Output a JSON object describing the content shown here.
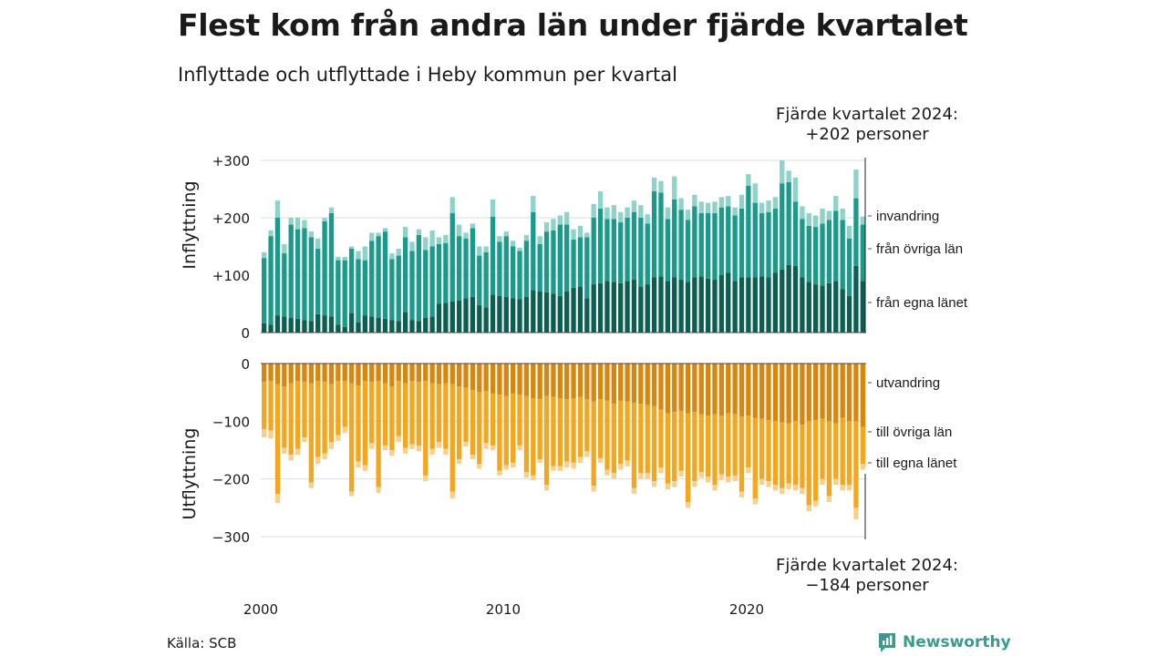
{
  "title": "Flest kom från andra län under fjärde kvartalet",
  "subtitle": "Inflyttade och utflyttade i Heby kommun per kvartal",
  "source": "Källa: SCB",
  "logo": "Newsworthy",
  "colors": {
    "in_egna": "#0b5e52",
    "in_ovriga": "#1a9a8a",
    "in_invandring": "#8fd3c8",
    "ut_egna": "#d9860c",
    "ut_ovriga": "#f4a71c",
    "ut_utvandring": "#f8d08c",
    "grid": "#dddddd"
  },
  "chart_data": {
    "type": "bar",
    "stacked": true,
    "x_ticks": [
      "2000",
      "2010",
      "2020"
    ],
    "panels": [
      {
        "name": "inflyttning",
        "ylabel": "Inflyttning",
        "ylim": [
          0,
          300
        ],
        "y_ticks": [
          {
            "v": 0,
            "label": "0"
          },
          {
            "v": 100,
            "label": "+100"
          },
          {
            "v": 200,
            "label": "+200"
          },
          {
            "v": 300,
            "label": "+300"
          }
        ],
        "annotation": [
          "Fjärde kvartalet 2024:",
          "+202 personer"
        ],
        "series": [
          {
            "name": "från egna länet",
            "color": "#0b5e52",
            "values": [
              16,
              14,
              30,
              28,
              26,
              24,
              22,
              20,
              32,
              30,
              28,
              14,
              10,
              34,
              18,
              30,
              28,
              26,
              24,
              22,
              20,
              36,
              22,
              20,
              26,
              28,
              50,
              52,
              54,
              56,
              60,
              62,
              48,
              44,
              66,
              64,
              62,
              60,
              58,
              62,
              74,
              72,
              70,
              68,
              64,
              72,
              78,
              80,
              60,
              84,
              86,
              90,
              88,
              86,
              90,
              92,
              80,
              84,
              96,
              98,
              90,
              96,
              92,
              88,
              96,
              98,
              94,
              92,
              100,
              104,
              90,
              96,
              96,
              96,
              98,
              96,
              104,
              110,
              118,
              116,
              96,
              88,
              84,
              82,
              86,
              90,
              76,
              64,
              116,
              90
            ]
          },
          {
            "name": "från övriga län",
            "color": "#1a9a8a",
            "values": [
              114,
              154,
              170,
              110,
              162,
              156,
              160,
              146,
              114,
              164,
              180,
              112,
              116,
              112,
              110,
              96,
              132,
              142,
              152,
              106,
              114,
              130,
              120,
              150,
              118,
              122,
              104,
              104,
              154,
              112,
              104,
              120,
              86,
              96,
              136,
              94,
              106,
              90,
              84,
              98,
              136,
              82,
              106,
              110,
              124,
              116,
              84,
              86,
              106,
              116,
              130,
              108,
              110,
              106,
              110,
              118,
              120,
              106,
              150,
              146,
              108,
              136,
              122,
              108,
              124,
              110,
              114,
              116,
              118,
              116,
              114,
              120,
              160,
              130,
              110,
              114,
              112,
              150,
              144,
              112,
              102,
              98,
              100,
              108,
              110,
              122,
              120,
              100,
              118,
              98
            ]
          },
          {
            "name": "invandring",
            "color": "#8fd3c8",
            "values": [
              10,
              10,
              30,
              16,
              12,
              20,
              14,
              10,
              18,
              6,
              10,
              6,
              6,
              4,
              14,
              24,
              14,
              6,
              6,
              10,
              12,
              18,
              16,
              10,
              22,
              28,
              12,
              14,
              28,
              20,
              10,
              8,
              16,
              10,
              30,
              10,
              8,
              10,
              6,
              10,
              28,
              14,
              16,
              20,
              16,
              22,
              18,
              20,
              8,
              24,
              30,
              20,
              24,
              18,
              18,
              20,
              22,
              16,
              24,
              20,
              20,
              40,
              20,
              18,
              20,
              20,
              18,
              20,
              18,
              18,
              14,
              24,
              20,
              34,
              18,
              20,
              20,
              40,
              20,
              42,
              22,
              22,
              20,
              26,
              16,
              26,
              20,
              22,
              50,
              14
            ]
          }
        ]
      },
      {
        "name": "utflyttning",
        "ylabel": "Utflyttning",
        "ylim": [
          -300,
          0
        ],
        "y_ticks": [
          {
            "v": 0,
            "label": "0"
          },
          {
            "v": -100,
            "label": "−100"
          },
          {
            "v": -200,
            "label": "−200"
          },
          {
            "v": -300,
            "label": "−300"
          }
        ],
        "annotation": [
          "Fjärde kvartalet 2024:",
          "−184 personer"
        ],
        "series": [
          {
            "name": "till egna länet",
            "color": "#d9860c",
            "values": [
              -32,
              -30,
              -36,
              -40,
              -34,
              -30,
              -32,
              -34,
              -30,
              -32,
              -36,
              -30,
              -30,
              -34,
              -38,
              -30,
              -32,
              -30,
              -34,
              -40,
              -30,
              -34,
              -30,
              -32,
              -30,
              -34,
              -36,
              -34,
              -36,
              -40,
              -42,
              -46,
              -50,
              -48,
              -52,
              -54,
              -56,
              -52,
              -54,
              -56,
              -60,
              -62,
              -56,
              -58,
              -60,
              -62,
              -60,
              -58,
              -62,
              -66,
              -62,
              -64,
              -70,
              -64,
              -66,
              -68,
              -70,
              -72,
              -74,
              -80,
              -86,
              -84,
              -82,
              -86,
              -84,
              -88,
              -90,
              -88,
              -90,
              -86,
              -88,
              -92,
              -90,
              -94,
              -96,
              -98,
              -100,
              -102,
              -104,
              -100,
              -106,
              -100,
              -98,
              -96,
              -100,
              -104,
              -94,
              -100,
              -100,
              -110
            ]
          },
          {
            "name": "till övriga län",
            "color": "#f4a71c",
            "values": [
              -82,
              -86,
              -190,
              -106,
              -124,
              -118,
              -96,
              -172,
              -132,
              -124,
              -100,
              -94,
              -80,
              -188,
              -132,
              -146,
              -106,
              -184,
              -108,
              -110,
              -96,
              -112,
              -110,
              -110,
              -164,
              -114,
              -100,
              -114,
              -186,
              -126,
              -94,
              -112,
              -124,
              -90,
              -90,
              -132,
              -120,
              -120,
              -88,
              -132,
              -134,
              -104,
              -154,
              -120,
              -118,
              -108,
              -112,
              -104,
              -90,
              -146,
              -102,
              -120,
              -120,
              -110,
              -102,
              -148,
              -120,
              -118,
              -130,
              -100,
              -122,
              -120,
              -104,
              -154,
              -120,
              -100,
              -106,
              -122,
              -102,
              -110,
              -106,
              -130,
              -90,
              -140,
              -104,
              -106,
              -110,
              -114,
              -104,
              -110,
              -110,
              -146,
              -140,
              -104,
              -130,
              -96,
              -116,
              -110,
              -150,
              -64
            ]
          },
          {
            "name": "utvandring",
            "color": "#f8d08c",
            "values": [
              -14,
              -14,
              -16,
              -10,
              -10,
              -10,
              -8,
              -10,
              -12,
              -10,
              -12,
              -10,
              -10,
              -8,
              -10,
              -10,
              -10,
              -10,
              -8,
              -10,
              -10,
              -10,
              -8,
              -10,
              -10,
              -10,
              -10,
              -10,
              -12,
              -8,
              -8,
              -8,
              -8,
              -10,
              -8,
              -8,
              -8,
              -8,
              -8,
              -10,
              -8,
              -6,
              -10,
              -8,
              -8,
              -10,
              -10,
              -10,
              -10,
              -10,
              -8,
              -10,
              -10,
              -10,
              -10,
              -10,
              -10,
              -10,
              -10,
              -10,
              -10,
              -10,
              -10,
              -10,
              -10,
              -10,
              -10,
              -10,
              -10,
              -10,
              -10,
              -10,
              -10,
              -10,
              -10,
              -10,
              -10,
              -10,
              -10,
              -10,
              -10,
              -10,
              -10,
              -10,
              -10,
              -10,
              -10,
              -10,
              -20,
              -10
            ]
          }
        ]
      }
    ]
  }
}
